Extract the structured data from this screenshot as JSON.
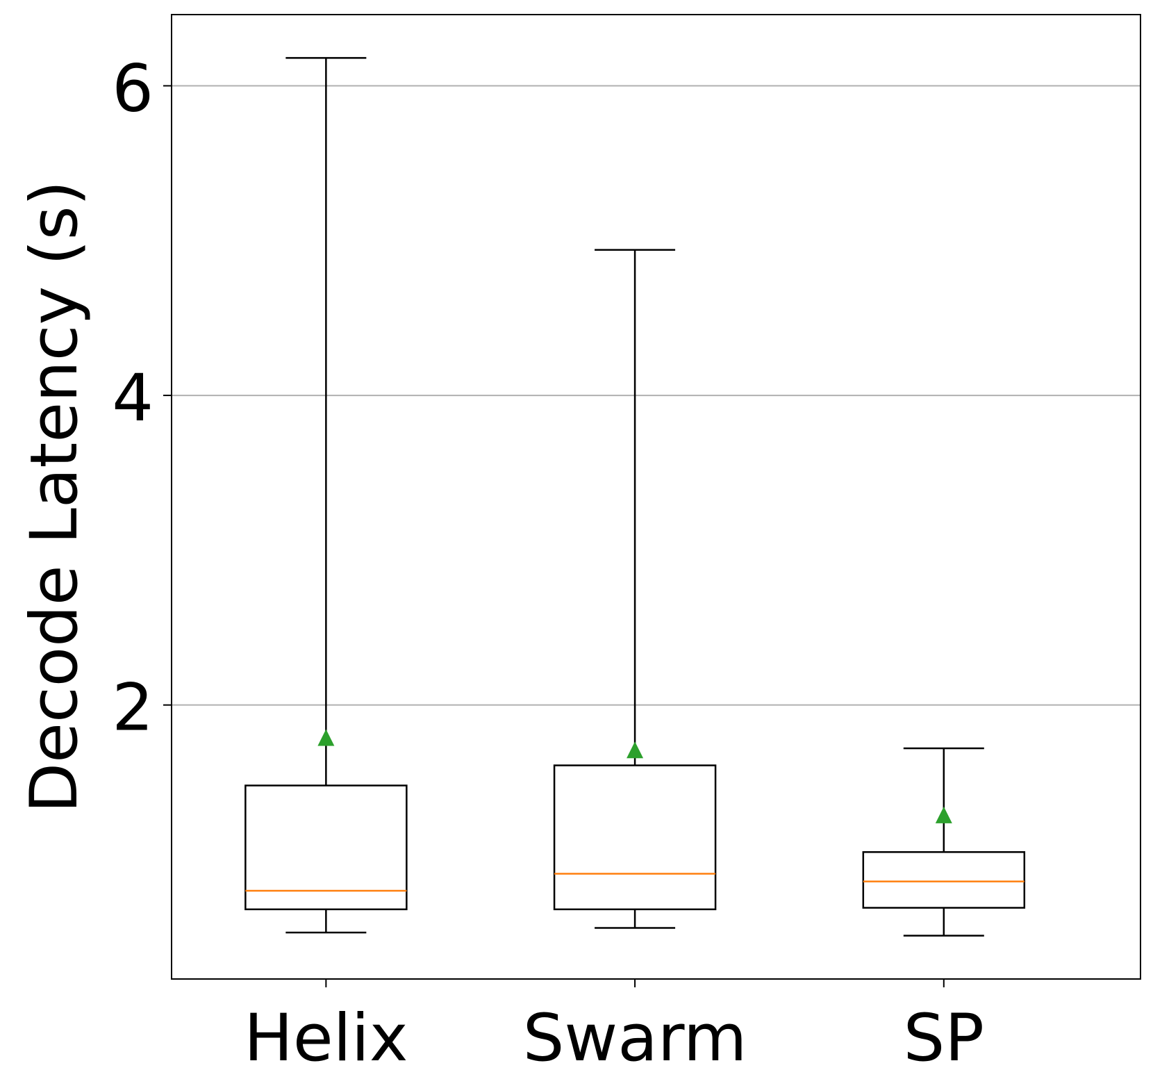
{
  "chart_data": {
    "type": "box",
    "ylabel": "Decode Latency (s)",
    "xlabel": "",
    "ylim": [
      0.23,
      6.46
    ],
    "yticks": [
      2,
      4,
      6
    ],
    "grid": "y-major",
    "categories": [
      "Helix",
      "Swarm",
      "SP"
    ],
    "boxes": [
      {
        "label": "Helix",
        "whisker_low": 0.53,
        "q1": 0.68,
        "median": 0.8,
        "q3": 1.48,
        "whisker_high": 6.18,
        "mean": 1.79
      },
      {
        "label": "Swarm",
        "whisker_low": 0.56,
        "q1": 0.68,
        "median": 0.91,
        "q3": 1.61,
        "whisker_high": 4.94,
        "mean": 1.71
      },
      {
        "label": "SP",
        "whisker_low": 0.51,
        "q1": 0.69,
        "median": 0.86,
        "q3": 1.05,
        "whisker_high": 1.72,
        "mean": 1.29
      }
    ],
    "colors": {
      "box": "#000000",
      "median": "#ff7f0e",
      "mean_marker": "#2ca02c",
      "grid": "#b0b0b0"
    }
  }
}
